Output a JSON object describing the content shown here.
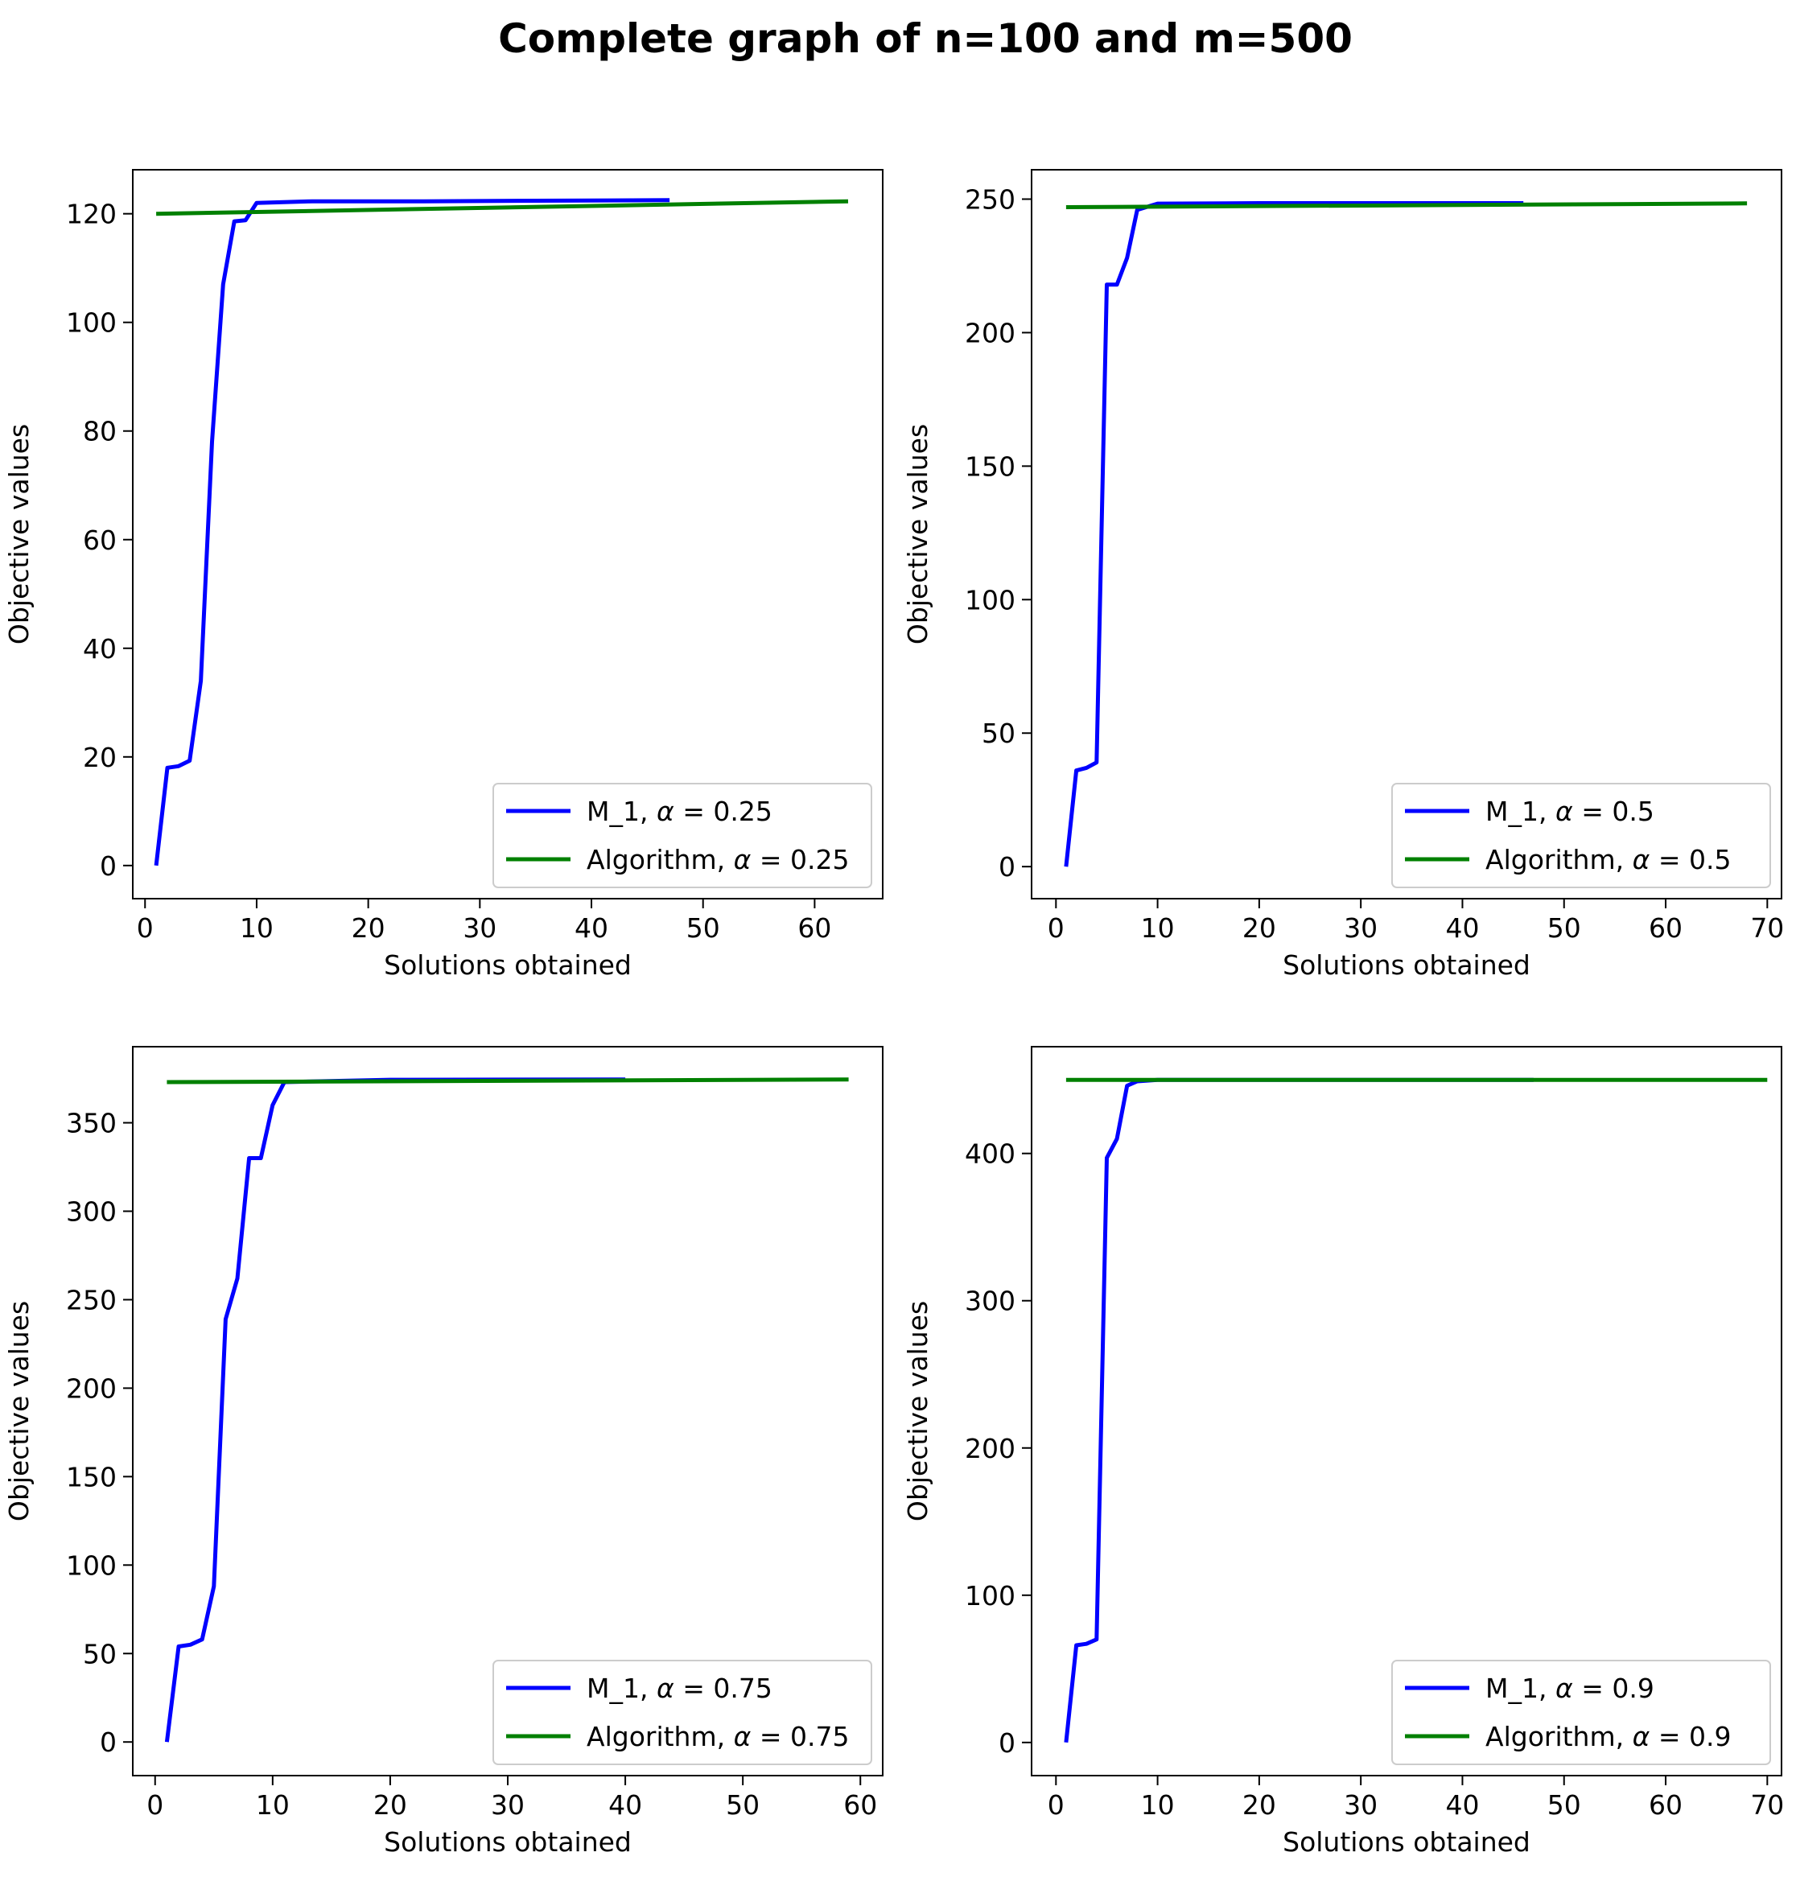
{
  "figure": {
    "title": "Complete graph of n=100 and m=500"
  },
  "colors": {
    "m1": "#0000ff",
    "algorithm": "#008000"
  },
  "chart_data": [
    {
      "type": "line",
      "xlabel": "Solutions obtained",
      "ylabel": "Objective values",
      "xlim": [
        -1.1,
        66.1
      ],
      "ylim": [
        -6.1,
        128.1
      ],
      "xticks": [
        0,
        10,
        20,
        30,
        40,
        50,
        60
      ],
      "yticks": [
        0,
        20,
        40,
        60,
        80,
        100,
        120
      ],
      "legend_position": "lower right",
      "series": [
        {
          "name": "M_1, α = 0.25",
          "label_prefix": "M_1, ",
          "alpha_label": "α = 0.25",
          "color": "#0000ff",
          "points": [
            [
              1,
              0
            ],
            [
              2,
              18
            ],
            [
              3,
              18.3
            ],
            [
              4,
              19.3
            ],
            [
              5,
              34
            ],
            [
              6,
              78
            ],
            [
              7,
              107
            ],
            [
              8,
              118.6
            ],
            [
              9,
              118.8
            ],
            [
              10,
              122
            ],
            [
              15,
              122.3
            ],
            [
              25,
              122.3
            ],
            [
              35,
              122.4
            ],
            [
              47,
              122.5
            ]
          ]
        },
        {
          "name": "Algorithm, α = 0.25",
          "label_prefix": "Algorithm, ",
          "alpha_label": "α = 0.25",
          "color": "#008000",
          "points": [
            [
              1,
              120
            ],
            [
              63,
              122.3
            ]
          ]
        }
      ]
    },
    {
      "type": "line",
      "xlabel": "Solutions obtained",
      "ylabel": "Objective values",
      "xlim": [
        -2.4,
        71.4
      ],
      "ylim": [
        -12,
        261
      ],
      "xticks": [
        0,
        10,
        20,
        30,
        40,
        50,
        60,
        70
      ],
      "yticks": [
        0,
        50,
        100,
        150,
        200,
        250
      ],
      "legend_position": "lower right",
      "series": [
        {
          "name": "M_1, α = 0.5",
          "label_prefix": "M_1, ",
          "alpha_label": "α = 0.5",
          "color": "#0000ff",
          "points": [
            [
              1,
              0
            ],
            [
              2,
              36
            ],
            [
              3,
              37
            ],
            [
              4,
              39
            ],
            [
              5,
              218
            ],
            [
              6,
              218
            ],
            [
              7,
              228
            ],
            [
              8,
              246
            ],
            [
              10,
              248.3
            ],
            [
              20,
              248.5
            ],
            [
              46,
              248.5
            ]
          ]
        },
        {
          "name": "Algorithm, α = 0.5",
          "label_prefix": "Algorithm, ",
          "alpha_label": "α = 0.5",
          "color": "#008000",
          "points": [
            [
              1,
              247
            ],
            [
              68,
              248.4
            ]
          ]
        }
      ]
    },
    {
      "type": "line",
      "xlabel": "Solutions obtained",
      "ylabel": "Objective values",
      "xlim": [
        -1.9,
        61.9
      ],
      "ylim": [
        -19,
        393
      ],
      "xticks": [
        0,
        10,
        20,
        30,
        40,
        50,
        60
      ],
      "yticks": [
        0,
        50,
        100,
        150,
        200,
        250,
        300,
        350
      ],
      "legend_position": "lower right",
      "series": [
        {
          "name": "M_1, α = 0.75",
          "label_prefix": "M_1, ",
          "alpha_label": "α = 0.75",
          "color": "#0000ff",
          "points": [
            [
              1,
              0
            ],
            [
              2,
              54
            ],
            [
              3,
              55
            ],
            [
              4,
              58
            ],
            [
              5,
              88
            ],
            [
              6,
              239
            ],
            [
              7,
              262
            ],
            [
              8,
              330
            ],
            [
              9,
              330
            ],
            [
              10,
              360
            ],
            [
              11,
              373
            ],
            [
              20,
              374.3
            ],
            [
              40,
              374.5
            ]
          ]
        },
        {
          "name": "Algorithm, α = 0.75",
          "label_prefix": "Algorithm, ",
          "alpha_label": "α = 0.75",
          "color": "#008000",
          "points": [
            [
              1,
              373
            ],
            [
              59,
              374.5
            ]
          ]
        }
      ]
    },
    {
      "type": "line",
      "xlabel": "Solutions obtained",
      "ylabel": "Objective values",
      "xlim": [
        -2.4,
        71.4
      ],
      "ylim": [
        -22.5,
        472.5
      ],
      "xticks": [
        0,
        10,
        20,
        30,
        40,
        50,
        60,
        70
      ],
      "yticks": [
        0,
        100,
        200,
        300,
        400
      ],
      "legend_position": "lower right",
      "series": [
        {
          "name": "M_1, α = 0.9",
          "label_prefix": "M_1, ",
          "alpha_label": "α = 0.9",
          "color": "#0000ff",
          "points": [
            [
              1,
              0
            ],
            [
              2,
              66
            ],
            [
              3,
              67
            ],
            [
              4,
              70
            ],
            [
              5,
              397
            ],
            [
              6,
              410
            ],
            [
              7,
              446
            ],
            [
              8,
              449
            ],
            [
              10,
              450
            ],
            [
              47,
              450
            ]
          ]
        },
        {
          "name": "Algorithm, α = 0.9",
          "label_prefix": "Algorithm, ",
          "alpha_label": "α = 0.9",
          "color": "#008000",
          "points": [
            [
              1,
              450
            ],
            [
              70,
              450
            ]
          ]
        }
      ]
    }
  ]
}
